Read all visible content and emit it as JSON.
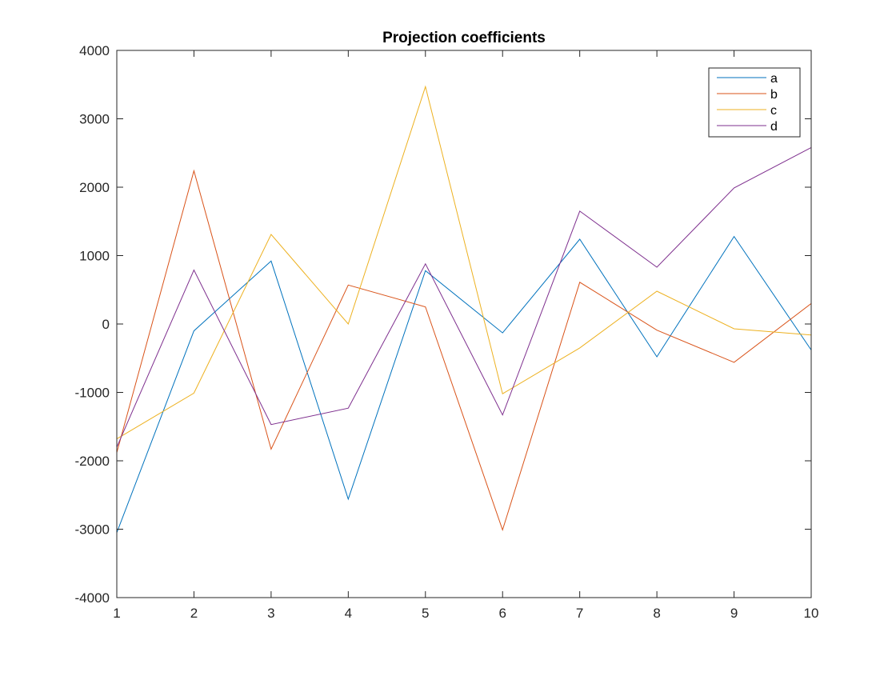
{
  "chart_data": {
    "type": "line",
    "title": "Projection coefficients",
    "xlabel": "",
    "ylabel": "",
    "xlim": [
      1,
      10
    ],
    "ylim": [
      -4000,
      4000
    ],
    "x": [
      1,
      2,
      3,
      4,
      5,
      6,
      7,
      8,
      9,
      10
    ],
    "xticks": [
      "1",
      "2",
      "3",
      "4",
      "5",
      "6",
      "7",
      "8",
      "9",
      "10"
    ],
    "yticks": [
      "-4000",
      "-3000",
      "-2000",
      "-1000",
      "0",
      "1000",
      "2000",
      "3000",
      "4000"
    ],
    "grid": false,
    "legend_position": "top-right",
    "series": [
      {
        "name": "a",
        "color": "#0072BD",
        "values": [
          -3050,
          -100,
          920,
          -2560,
          780,
          -130,
          1240,
          -480,
          1280,
          -380
        ]
      },
      {
        "name": "b",
        "color": "#D95319",
        "values": [
          -1880,
          2240,
          -1830,
          570,
          250,
          -3010,
          610,
          -90,
          -560,
          300
        ]
      },
      {
        "name": "c",
        "color": "#EDB120",
        "values": [
          -1680,
          -1010,
          1310,
          0,
          3470,
          -1020,
          -350,
          480,
          -70,
          -160
        ]
      },
      {
        "name": "d",
        "color": "#7E2F8E",
        "values": [
          -1800,
          790,
          -1470,
          -1230,
          880,
          -1330,
          1650,
          830,
          1990,
          2580
        ]
      }
    ]
  }
}
